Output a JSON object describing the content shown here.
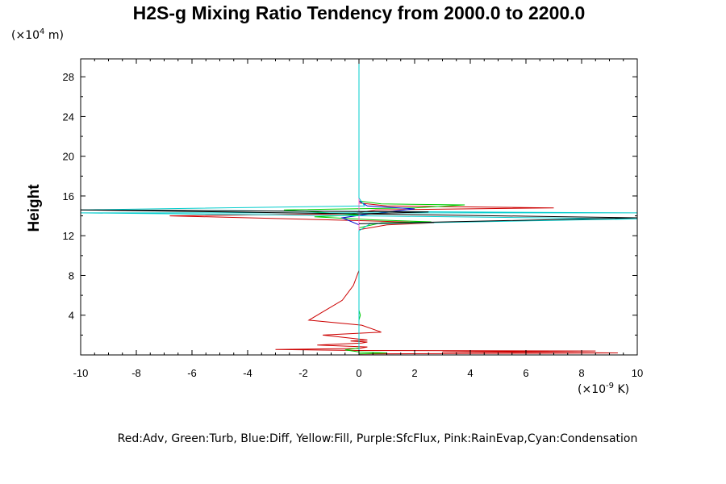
{
  "chart_data": {
    "type": "line",
    "title": "H2S-g Mixing Ratio Tendency from 2000.0 to 2200.0",
    "ylabel": "Height",
    "xlabel": "",
    "y_unit_prefix": "(×10",
    "y_unit_exp": "4",
    "y_unit_suffix": " m)",
    "x_unit_prefix": "(×10",
    "x_unit_exp": "-9",
    "x_unit_suffix": " K)",
    "legend_text": "Red:Adv, Green:Turb, Blue:Diff, Yellow:Fill, Purple:SfcFlux, Pink:RainEvap,Cyan:Condensation",
    "xlim": [
      -10,
      10
    ],
    "ylim": [
      0,
      29.8
    ],
    "xticks": [
      -10,
      -8,
      -6,
      -4,
      -2,
      0,
      2,
      4,
      6,
      8,
      10
    ],
    "yticks": [
      4,
      8,
      12,
      16,
      20,
      24,
      28
    ],
    "grid": false,
    "series": [
      {
        "name": "Adv",
        "color": "#cc0000",
        "points": [
          [
            0,
            0.1
          ],
          [
            9.3,
            0.2
          ],
          [
            3.0,
            0.3
          ],
          [
            8.5,
            0.4
          ],
          [
            0,
            0.45
          ],
          [
            -3.0,
            0.55
          ],
          [
            0,
            0.65
          ],
          [
            0.3,
            0.8
          ],
          [
            -1.5,
            1.0
          ],
          [
            0.1,
            1.2
          ],
          [
            0.3,
            1.3
          ],
          [
            -0.3,
            1.4
          ],
          [
            0.3,
            1.5
          ],
          [
            -1.3,
            2.0
          ],
          [
            0.8,
            2.3
          ],
          [
            0.1,
            3.0
          ],
          [
            -1.8,
            3.5
          ],
          [
            -1.2,
            4.5
          ],
          [
            -0.6,
            5.5
          ],
          [
            -0.2,
            7.0
          ],
          [
            0,
            8.5
          ],
          [
            0,
            12.6
          ],
          [
            1.0,
            13.1
          ],
          [
            2.7,
            13.3
          ],
          [
            0.3,
            13.5
          ],
          [
            -6.8,
            14.0
          ],
          [
            -0.3,
            14.2
          ],
          [
            0.6,
            14.6
          ],
          [
            7.0,
            14.8
          ],
          [
            1.0,
            15.0
          ],
          [
            0,
            15.3
          ],
          [
            0,
            29.8
          ]
        ]
      },
      {
        "name": "Turb",
        "color": "#00cc00",
        "points": [
          [
            0,
            0.1
          ],
          [
            1.0,
            0.2
          ],
          [
            0,
            0.3
          ],
          [
            -0.5,
            0.5
          ],
          [
            0,
            0.7
          ],
          [
            0,
            3.5
          ],
          [
            0.05,
            4.0
          ],
          [
            0,
            4.5
          ],
          [
            0,
            12.8
          ],
          [
            0.8,
            13.3
          ],
          [
            2.6,
            13.4
          ],
          [
            0.5,
            13.6
          ],
          [
            -1.6,
            13.9
          ],
          [
            0,
            14.1
          ],
          [
            -2.7,
            14.6
          ],
          [
            2.0,
            14.8
          ],
          [
            3.8,
            15.1
          ],
          [
            0.8,
            15.2
          ],
          [
            0,
            15.5
          ],
          [
            0,
            29.8
          ]
        ]
      },
      {
        "name": "Diff",
        "color": "#0000cc",
        "points": [
          [
            0,
            0.1
          ],
          [
            0,
            13.1
          ],
          [
            -0.6,
            13.8
          ],
          [
            0.4,
            14.2
          ],
          [
            2.0,
            14.7
          ],
          [
            0.3,
            15.0
          ],
          [
            0,
            15.5
          ],
          [
            0,
            29.8
          ]
        ]
      },
      {
        "name": "Fill",
        "color": "#cccc00",
        "points": [
          [
            0,
            0.1
          ],
          [
            0,
            29.8
          ]
        ]
      },
      {
        "name": "SfcFlux",
        "color": "#990099",
        "points": [
          [
            0,
            0.1
          ],
          [
            0,
            29.8
          ]
        ]
      },
      {
        "name": "RainEvap",
        "color": "#ff66cc",
        "points": [
          [
            0,
            0.1
          ],
          [
            0,
            29.8
          ]
        ]
      },
      {
        "name": "Condensation",
        "color": "#00cccc",
        "points": [
          [
            0,
            0.1
          ],
          [
            0,
            12.5
          ],
          [
            0.4,
            13.2
          ],
          [
            10.0,
            13.7
          ],
          [
            0.3,
            14.0
          ],
          [
            -10.0,
            14.3
          ],
          [
            10.0,
            14.3
          ],
          [
            -10.0,
            14.6
          ],
          [
            0.2,
            15.0
          ],
          [
            0,
            15.8
          ],
          [
            0,
            29.8
          ]
        ]
      },
      {
        "name": "",
        "color": "#000000",
        "points": [
          [
            0,
            13.2
          ],
          [
            10.0,
            13.8
          ],
          [
            -10.0,
            14.6
          ],
          [
            2.5,
            14.4
          ],
          [
            0,
            14.2
          ]
        ]
      }
    ]
  }
}
